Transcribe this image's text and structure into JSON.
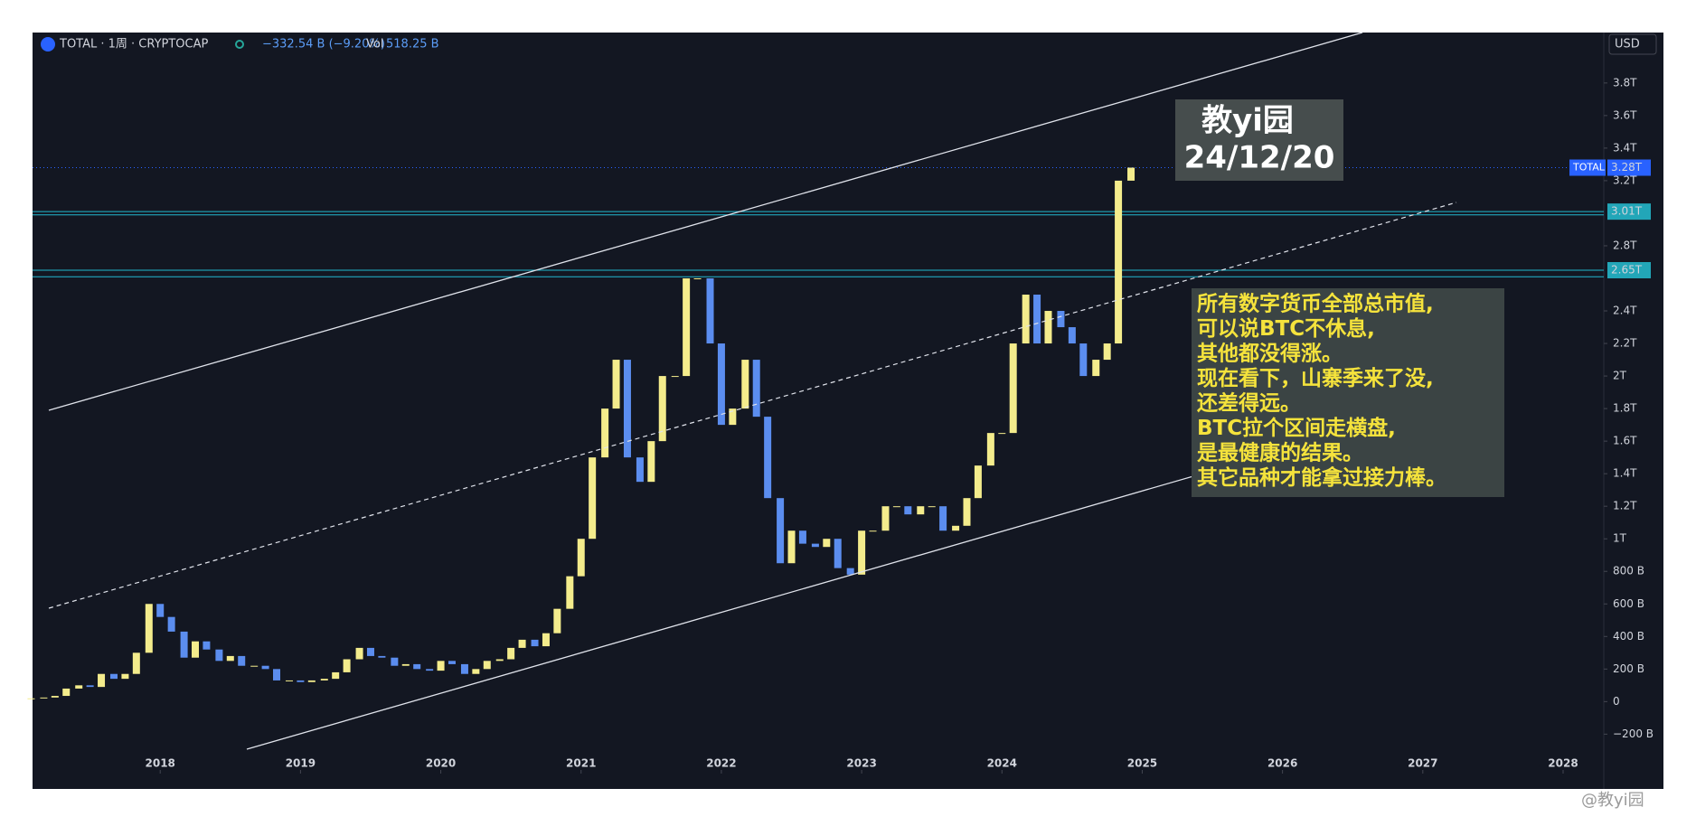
{
  "header": {
    "symbol": "TOTAL · 1周 · CRYPTOCAP",
    "change": "−332.54 B (−9.20%)",
    "vol_label": "Vol",
    "vol": "518.25 B",
    "currency": "USD"
  },
  "chart_data": {
    "type": "candlestick",
    "x": [
      2017.08,
      2017.17,
      2017.25,
      2017.33,
      2017.42,
      2017.5,
      2017.58,
      2017.67,
      2017.75,
      2017.83,
      2017.92,
      2018,
      2018.08,
      2018.17,
      2018.25,
      2018.33,
      2018.42,
      2018.5,
      2018.58,
      2018.67,
      2018.75,
      2018.83,
      2018.92,
      2019,
      2019.08,
      2019.17,
      2019.25,
      2019.33,
      2019.42,
      2019.5,
      2019.58,
      2019.67,
      2019.75,
      2019.83,
      2019.92,
      2020,
      2020.08,
      2020.17,
      2020.25,
      2020.33,
      2020.42,
      2020.5,
      2020.58,
      2020.67,
      2020.75,
      2020.83,
      2020.92,
      2021,
      2021.08,
      2021.17,
      2021.25,
      2021.33,
      2021.42,
      2021.5,
      2021.58,
      2021.67,
      2021.75,
      2021.83,
      2021.92,
      2022,
      2022.08,
      2022.17,
      2022.25,
      2022.33,
      2022.42,
      2022.5,
      2022.58,
      2022.67,
      2022.75,
      2022.83,
      2022.92,
      2023,
      2023.08,
      2023.17,
      2023.25,
      2023.33,
      2023.42,
      2023.5,
      2023.58,
      2023.67,
      2023.75,
      2023.83,
      2023.92,
      2024,
      2024.08,
      2024.17,
      2024.25,
      2024.33,
      2024.42,
      2024.5,
      2024.58,
      2024.67,
      2024.75,
      2024.83,
      2024.92
    ],
    "values": [
      0.02,
      0.025,
      0.035,
      0.08,
      0.1,
      0.09,
      0.17,
      0.14,
      0.17,
      0.3,
      0.6,
      0.52,
      0.43,
      0.27,
      0.37,
      0.32,
      0.25,
      0.28,
      0.22,
      0.22,
      0.2,
      0.13,
      0.13,
      0.12,
      0.13,
      0.14,
      0.18,
      0.26,
      0.33,
      0.28,
      0.27,
      0.22,
      0.23,
      0.2,
      0.19,
      0.25,
      0.23,
      0.17,
      0.2,
      0.25,
      0.26,
      0.33,
      0.38,
      0.34,
      0.42,
      0.57,
      0.77,
      1.0,
      1.5,
      1.8,
      2.1,
      1.5,
      1.35,
      1.6,
      2.0,
      2.0,
      2.6,
      2.6,
      2.2,
      1.7,
      1.8,
      2.1,
      1.75,
      1.25,
      0.85,
      1.05,
      0.97,
      0.95,
      1.0,
      0.82,
      0.78,
      1.05,
      1.05,
      1.2,
      1.2,
      1.15,
      1.2,
      1.2,
      1.05,
      1.08,
      1.25,
      1.45,
      1.65,
      1.65,
      2.2,
      2.5,
      2.2,
      2.4,
      2.3,
      2.2,
      2.0,
      2.1,
      2.2,
      3.2,
      3.28
    ],
    "up_color": "#f4ec8c",
    "down_color": "#5b8def",
    "xlim": [
      2017.09,
      2028.29
    ],
    "xticks": [
      2018,
      2019,
      2020,
      2021,
      2022,
      2023,
      2024,
      2025,
      2026,
      2027,
      2028
    ],
    "ylim": [
      -0.42,
      4.11
    ],
    "yticks": [
      {
        "value": -0.2,
        "label": "−200 B"
      },
      0,
      {
        "value": 0.2,
        "label": "200 B"
      },
      {
        "value": 0.4,
        "label": "400 B"
      },
      {
        "value": 0.6,
        "label": "600 B"
      },
      {
        "value": 0.8,
        "label": "800 B"
      },
      {
        "value": 1,
        "label": "1T"
      },
      {
        "value": 1.2,
        "label": "1.2T"
      },
      {
        "value": 1.4,
        "label": "1.4T"
      },
      {
        "value": 1.6,
        "label": "1.6T"
      },
      {
        "value": 1.8,
        "label": "1.8T"
      },
      {
        "value": 2,
        "label": "2T"
      },
      {
        "value": 2.2,
        "label": "2.2T"
      },
      {
        "value": 2.4,
        "label": "2.4T"
      },
      {
        "value": 2.8,
        "label": "2.8T"
      },
      {
        "value": 3.2,
        "label": "3.2T"
      },
      {
        "value": 3.4,
        "label": "3.4T"
      },
      {
        "value": 3.6,
        "label": "3.6T"
      },
      {
        "value": 3.8,
        "label": "3.8T"
      }
    ],
    "price_lines": [
      {
        "value": 3.01,
        "label": "3.01T"
      },
      {
        "value": 2.65,
        "label": "2.65T"
      }
    ],
    "levels": [
      2.99,
      2.61
    ],
    "current": {
      "name": "TOTAL",
      "value": 3.28,
      "label": "3.28T"
    }
  },
  "stamp": {
    "title": "教yi园",
    "date": "24/12/20"
  },
  "note": [
    "所有数字货币全部总市值,",
    "可以说BTC不休息,",
    "其他都没得涨。",
    "现在看下，山寨季来了没,",
    "还差得远。",
    "BTC拉个区间走横盘,",
    "是最健康的结果。",
    "其它品种才能拿过接力棒。"
  ],
  "watermark": "@教yi园"
}
